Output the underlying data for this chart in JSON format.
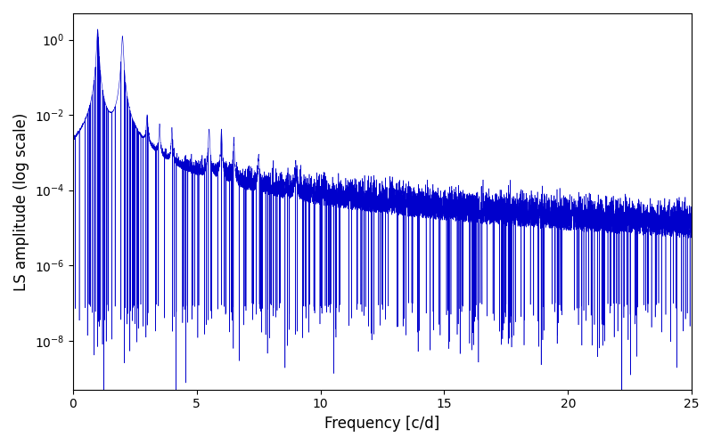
{
  "xlabel": "Frequency [c/d]",
  "ylabel": "LS amplitude (log scale)",
  "line_color": "#0000cc",
  "xlim": [
    0,
    25
  ],
  "ylim": [
    5e-10,
    5
  ],
  "yticks_values": [
    1e-08,
    1e-06,
    0.0001,
    0.01,
    1.0
  ],
  "xticks": [
    0,
    5,
    10,
    15,
    20,
    25
  ],
  "figsize": [
    8.0,
    5.0
  ],
  "dpi": 100,
  "num_points": 8000,
  "freq_max": 25.0,
  "seed": 7
}
